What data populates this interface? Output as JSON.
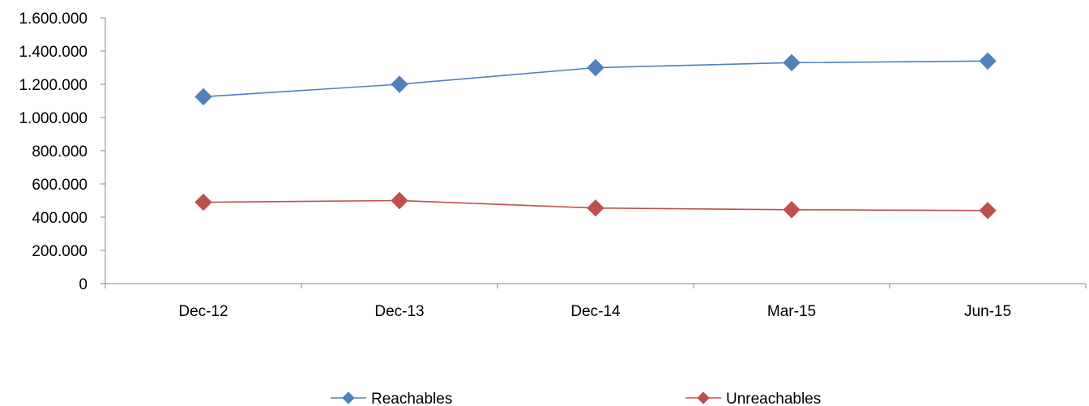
{
  "chart_data": {
    "type": "line",
    "title": "",
    "xlabel": "",
    "ylabel": "",
    "categories": [
      "Dec-12",
      "Dec-13",
      "Dec-14",
      "Mar-15",
      "Jun-15"
    ],
    "ylim": [
      0,
      1600000
    ],
    "y_ticks": [
      0,
      200000,
      400000,
      600000,
      800000,
      1000000,
      1200000,
      1400000,
      1600000
    ],
    "y_tick_labels": [
      "0",
      "200.000",
      "400.000",
      "600.000",
      "800.000",
      "1.000.000",
      "1.200.000",
      "1.400.000",
      "1.600.000"
    ],
    "grid": false,
    "legend_position": "bottom",
    "series": [
      {
        "name": "Reachables",
        "color": "#4F81BD",
        "marker": "diamond",
        "values": [
          1125000,
          1200000,
          1300000,
          1330000,
          1340000
        ]
      },
      {
        "name": "Unreachables",
        "color": "#C0504D",
        "marker": "diamond",
        "values": [
          490000,
          500000,
          455000,
          445000,
          440000
        ]
      }
    ]
  }
}
